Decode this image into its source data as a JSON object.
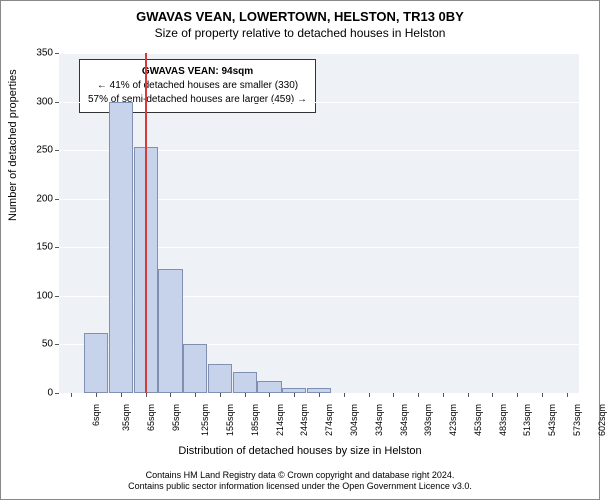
{
  "chart": {
    "type": "bar",
    "title_line1": "GWAVAS VEAN, LOWERTOWN, HELSTON, TR13 0BY",
    "title_line2": "Size of property relative to detached houses in Helston",
    "ylabel": "Number of detached properties",
    "xlabel": "Distribution of detached houses by size in Helston",
    "ylim": [
      0,
      350
    ],
    "ytick_step": 50,
    "yticks": [
      0,
      50,
      100,
      150,
      200,
      250,
      300,
      350
    ],
    "categories": [
      "6sqm",
      "35sqm",
      "65sqm",
      "95sqm",
      "125sqm",
      "155sqm",
      "185sqm",
      "214sqm",
      "244sqm",
      "274sqm",
      "304sqm",
      "334sqm",
      "364sqm",
      "393sqm",
      "423sqm",
      "453sqm",
      "483sqm",
      "513sqm",
      "543sqm",
      "573sqm",
      "602sqm"
    ],
    "values": [
      0,
      62,
      300,
      253,
      128,
      50,
      30,
      22,
      12,
      5,
      5,
      0,
      0,
      0,
      0,
      0,
      0,
      0,
      0,
      0,
      0
    ],
    "bar_fill": "#c6d3ea",
    "bar_border": "#7f90b0",
    "background_color": "#eef1f6",
    "grid_color": "#ffffff",
    "marker_value_position": 2.97,
    "marker_color": "#d43b3b",
    "info_box": {
      "line1": "GWAVAS VEAN: 94sqm",
      "line2": "← 41% of detached houses are smaller (330)",
      "line3": "57% of semi-detached houses are larger (459) →"
    },
    "footer_line1": "Contains HM Land Registry data © Crown copyright and database right 2024.",
    "footer_line2": "Contains public sector information licensed under the Open Government Licence v3.0."
  }
}
